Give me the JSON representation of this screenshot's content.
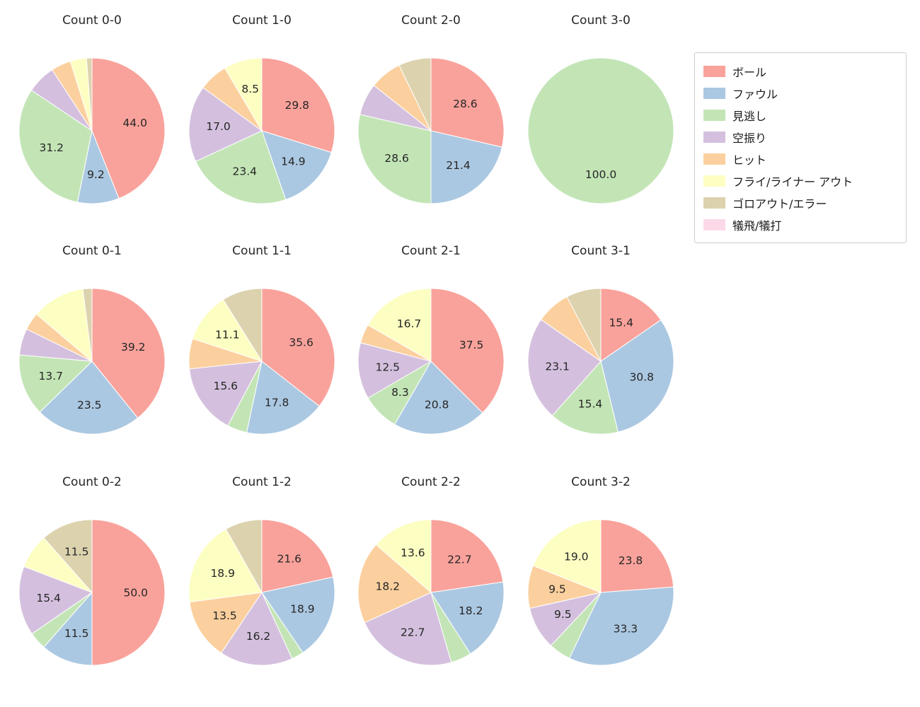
{
  "figure_title": "",
  "legend": {
    "items": [
      {
        "key": "ball",
        "label": "ボール"
      },
      {
        "key": "foul",
        "label": "ファウル"
      },
      {
        "key": "looking",
        "label": "見逃し"
      },
      {
        "key": "swinging",
        "label": "空振り"
      },
      {
        "key": "hit",
        "label": "ヒット"
      },
      {
        "key": "fly_liner_out",
        "label": "フライ/ライナー アウト"
      },
      {
        "key": "ground_out_error",
        "label": "ゴロアウト/エラー"
      },
      {
        "key": "sac",
        "label": "犠飛/犠打"
      }
    ]
  },
  "chart_data": {
    "type": "pie",
    "categories": [
      "ボール",
      "ファウル",
      "見逃し",
      "空振り",
      "ヒット",
      "フライ/ライナー アウト",
      "ゴロアウト/エラー",
      "犠飛/犠打"
    ],
    "category_keys": [
      "ball",
      "foul",
      "looking",
      "swinging",
      "hit",
      "fly_liner_out",
      "ground_out_error",
      "sac"
    ],
    "colors": {
      "ball": "#f9a29b",
      "foul": "#abc8e2",
      "looking": "#c3e5b6",
      "swinging": "#d4c0de",
      "hit": "#fbd09e",
      "fly_liner_out": "#fdfec2",
      "ground_out_error": "#dcd2ae",
      "sac": "#fbd9e8"
    },
    "layout": {
      "grid": "3 rows x 4 cols",
      "start_angle": "top",
      "direction": "clockwise",
      "legend_position": "top-right",
      "slice_label_radius": 0.6
    },
    "charts": [
      {
        "title": "Count 0-0",
        "values": [
          44.0,
          9.2,
          31.2,
          6.4,
          4.4,
          3.6,
          1.2,
          0
        ],
        "labels": [
          "44.0",
          "9.2",
          "31.2",
          null,
          null,
          null,
          null,
          null
        ]
      },
      {
        "title": "Count 1-0",
        "values": [
          29.8,
          14.9,
          23.4,
          17.0,
          6.4,
          8.5,
          0,
          0
        ],
        "labels": [
          "29.8",
          "14.9",
          "23.4",
          "17.0",
          null,
          "8.5",
          null,
          null
        ]
      },
      {
        "title": "Count 2-0",
        "values": [
          28.6,
          21.4,
          28.6,
          7.1,
          7.1,
          0,
          7.2,
          0
        ],
        "labels": [
          "28.6",
          "21.4",
          "28.6",
          null,
          null,
          null,
          null,
          null
        ]
      },
      {
        "title": "Count 3-0",
        "values": [
          0,
          0,
          100.0,
          0,
          0,
          0,
          0,
          0
        ],
        "labels": [
          null,
          null,
          "100.0",
          null,
          null,
          null,
          null,
          null
        ]
      },
      {
        "title": "Count 0-1",
        "values": [
          39.2,
          23.5,
          13.7,
          5.9,
          3.9,
          11.8,
          2.0,
          0
        ],
        "labels": [
          "39.2",
          "23.5",
          "13.7",
          null,
          null,
          null,
          null,
          null
        ]
      },
      {
        "title": "Count 1-1",
        "values": [
          35.6,
          17.8,
          4.4,
          15.6,
          6.7,
          11.1,
          8.9,
          0
        ],
        "labels": [
          "35.6",
          "17.8",
          null,
          "15.6",
          null,
          "11.1",
          null,
          null
        ]
      },
      {
        "title": "Count 2-1",
        "values": [
          37.5,
          20.8,
          8.3,
          12.5,
          4.2,
          16.7,
          0,
          0
        ],
        "labels": [
          "37.5",
          "20.8",
          "8.3",
          "12.5",
          null,
          "16.7",
          null,
          null
        ]
      },
      {
        "title": "Count 3-1",
        "values": [
          15.4,
          30.8,
          15.4,
          23.1,
          7.6,
          0,
          7.7,
          0
        ],
        "labels": [
          "15.4",
          "30.8",
          "15.4",
          "23.1",
          null,
          null,
          null,
          null
        ]
      },
      {
        "title": "Count 0-2",
        "values": [
          50.0,
          11.5,
          3.9,
          15.4,
          0,
          7.7,
          11.5,
          0
        ],
        "labels": [
          "50.0",
          "11.5",
          null,
          "15.4",
          null,
          null,
          "11.5",
          null
        ]
      },
      {
        "title": "Count 1-2",
        "values": [
          21.6,
          18.9,
          2.7,
          16.2,
          13.5,
          18.9,
          8.2,
          0
        ],
        "labels": [
          "21.6",
          "18.9",
          null,
          "16.2",
          "13.5",
          "18.9",
          null,
          null
        ]
      },
      {
        "title": "Count 2-2",
        "values": [
          22.7,
          18.2,
          4.6,
          22.7,
          18.2,
          13.6,
          0,
          0
        ],
        "labels": [
          "22.7",
          "18.2",
          null,
          "22.7",
          "18.2",
          "13.6",
          null,
          null
        ]
      },
      {
        "title": "Count 3-2",
        "values": [
          23.8,
          33.3,
          4.9,
          9.5,
          9.5,
          19.0,
          0,
          0
        ],
        "labels": [
          "23.8",
          "33.3",
          null,
          "9.5",
          "9.5",
          "19.0",
          null,
          null
        ]
      }
    ]
  }
}
